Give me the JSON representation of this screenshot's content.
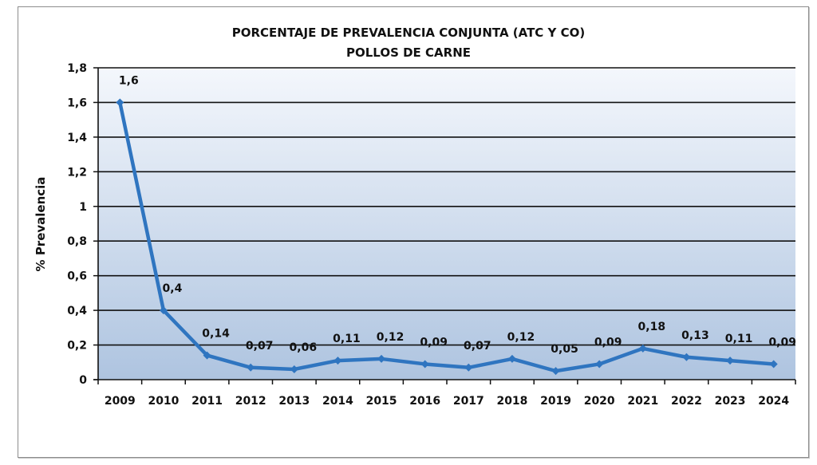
{
  "chart_data": {
    "type": "line",
    "title": "PORCENTAJE DE PREVALENCIA CONJUNTA (ATC Y CO)",
    "subtitle": "POLLOS DE CARNE",
    "xlabel": "",
    "ylabel": "% Prevalencia",
    "categories": [
      "2009",
      "2010",
      "2011",
      "2012",
      "2013",
      "2014",
      "2015",
      "2016",
      "2017",
      "2018",
      "2019",
      "2020",
      "2021",
      "2022",
      "2023",
      "2024"
    ],
    "series": [
      {
        "name": "Prevalencia conjunta",
        "values": [
          1.6,
          0.4,
          0.14,
          0.07,
          0.06,
          0.11,
          0.12,
          0.09,
          0.07,
          0.12,
          0.05,
          0.09,
          0.18,
          0.13,
          0.11,
          0.09
        ],
        "labels": [
          "1,6",
          "0,4",
          "0,14",
          "0,07",
          "0,06",
          "0,11",
          "0,12",
          "0,09",
          "0,07",
          "0,12",
          "0,05",
          "0,09",
          "0,18",
          "0,13",
          "0,11",
          "0,09"
        ],
        "color": "#2f75c0"
      }
    ],
    "ylim": [
      0,
      1.8
    ],
    "yticks": [
      0,
      0.2,
      0.4,
      0.6,
      0.8,
      1,
      1.2,
      1.4,
      1.6,
      1.8
    ],
    "ytick_labels": [
      "0",
      "0,2",
      "0,4",
      "0,6",
      "0,8",
      "1",
      "1,2",
      "1,4",
      "1,6",
      "1,8"
    ],
    "grid": true,
    "legend": "none",
    "colors": {
      "line": "#2f75c0",
      "plot_bg_top": "#f4f7fc",
      "plot_bg_bottom": "#aec4e0",
      "grid": "#111111"
    }
  }
}
